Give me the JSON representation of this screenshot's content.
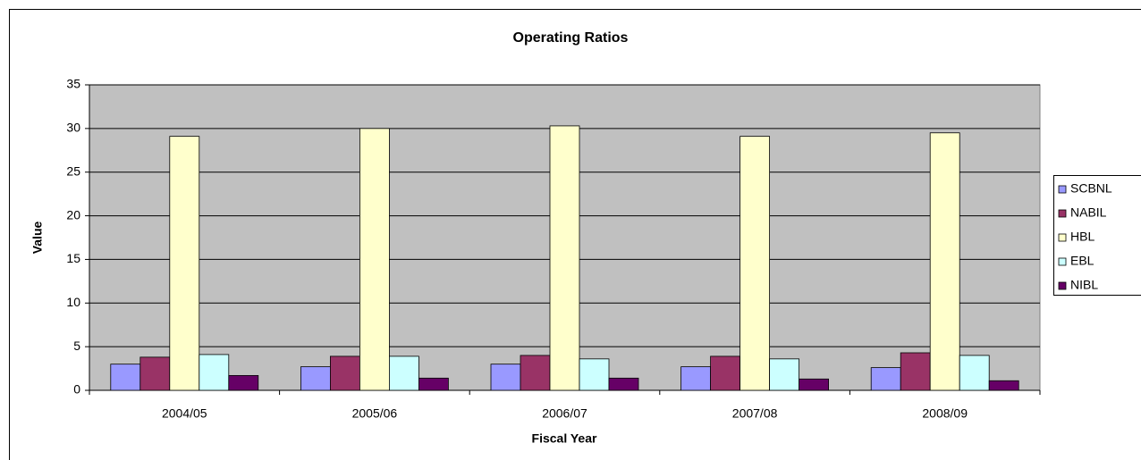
{
  "chart_data": {
    "type": "bar",
    "title": "Operating Ratios",
    "x_label": "Fiscal Year",
    "y_label": "Value",
    "categories": [
      "2004/05",
      "2005/06",
      "2006/07",
      "2007/08",
      "2008/09"
    ],
    "series": [
      {
        "name": "SCBNL",
        "color": "#9999ff",
        "values": [
          3.0,
          2.7,
          3.0,
          2.7,
          2.6
        ]
      },
      {
        "name": "NABIL",
        "color": "#993366",
        "values": [
          3.8,
          3.9,
          4.0,
          3.9,
          4.3
        ]
      },
      {
        "name": "HBL",
        "color": "#ffffcc",
        "values": [
          29.1,
          30.0,
          30.3,
          29.1,
          29.5
        ]
      },
      {
        "name": "EBL",
        "color": "#ccffff",
        "values": [
          4.1,
          3.9,
          3.6,
          3.6,
          4.0
        ]
      },
      {
        "name": "NIBL",
        "color": "#660066",
        "values": [
          1.7,
          1.4,
          1.4,
          1.3,
          1.1
        ]
      }
    ],
    "ylim": [
      0,
      35
    ],
    "yticks": [
      0,
      5,
      10,
      15,
      20,
      25,
      30,
      35
    ],
    "grid": true,
    "legend": "right"
  }
}
